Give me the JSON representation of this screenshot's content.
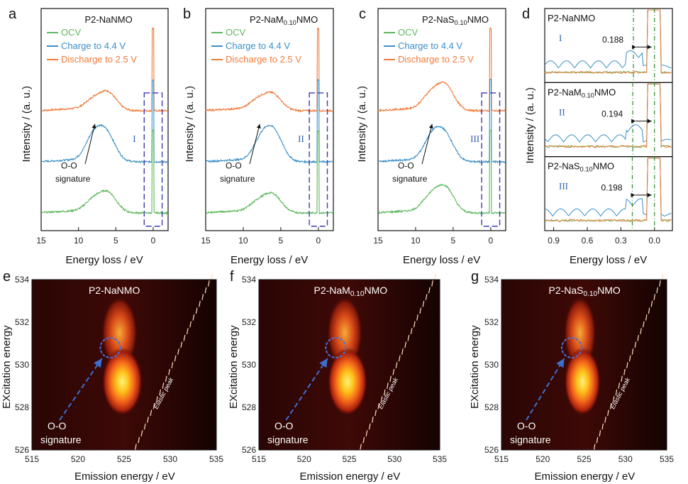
{
  "chart_data": [
    {
      "id": "a",
      "type": "line",
      "panel_label": "a",
      "title": "P2-NaNMO",
      "xlabel": "Energy loss / eV",
      "ylabel": "Intensity / (a. u.)",
      "xlim": [
        15,
        -2
      ],
      "xticks": [
        "15",
        "10",
        "5",
        "0"
      ],
      "series": [
        {
          "name": "OCV",
          "color": "#5cb85c",
          "peaks": [
            [
              8,
              0.35
            ],
            [
              6,
              0.55
            ]
          ]
        },
        {
          "name": "Charge to 4.4 V",
          "color": "#3a8fc6",
          "peaks": [
            [
              7.9,
              0.75
            ],
            [
              6.1,
              0.7
            ]
          ]
        },
        {
          "name": "Discharge to 2.5 V",
          "color": "#f07a3a",
          "peaks": [
            [
              8,
              0.3
            ],
            [
              6,
              0.5
            ]
          ]
        }
      ],
      "annotations": {
        "roman": "I",
        "arrow_text_1": "O-O",
        "arrow_text_2": "signature"
      }
    },
    {
      "id": "b",
      "type": "line",
      "panel_label": "b",
      "title": "P2-NaM0.10NMO",
      "xlabel": "Energy loss / eV",
      "ylabel": "Intensity / (a. u.)",
      "xlim": [
        15,
        -2
      ],
      "xticks": [
        "15",
        "10",
        "5",
        "0"
      ],
      "series": [
        {
          "name": "OCV",
          "color": "#5cb85c",
          "peaks": [
            [
              8,
              0.3
            ],
            [
              6,
              0.5
            ]
          ]
        },
        {
          "name": "Charge to 4.4 V",
          "color": "#3a8fc6",
          "peaks": [
            [
              7.5,
              0.65
            ],
            [
              5.8,
              0.75
            ]
          ]
        },
        {
          "name": "Discharge to 2.5 V",
          "color": "#f07a3a",
          "peaks": [
            [
              8,
              0.3
            ],
            [
              6,
              0.45
            ]
          ]
        }
      ],
      "annotations": {
        "roman": "II",
        "arrow_text_1": "O-O",
        "arrow_text_2": "signature"
      }
    },
    {
      "id": "c",
      "type": "line",
      "panel_label": "c",
      "title": "P2-NaS0.10NMO",
      "xlabel": "Energy loss / eV",
      "ylabel": "Intensity / (a. u.)",
      "xlim": [
        15,
        -2
      ],
      "xticks": [
        "15",
        "10",
        "5",
        "0"
      ],
      "series": [
        {
          "name": "OCV",
          "color": "#5cb85c",
          "peaks": [
            [
              8,
              0.45
            ],
            [
              6,
              0.7
            ]
          ]
        },
        {
          "name": "Charge to 4.4 V",
          "color": "#3a8fc6",
          "peaks": [
            [
              7.8,
              0.7
            ],
            [
              6,
              0.7
            ]
          ]
        },
        {
          "name": "Discharge to 2.5 V",
          "color": "#f07a3a",
          "peaks": [
            [
              8,
              0.45
            ],
            [
              6,
              0.7
            ]
          ]
        }
      ],
      "annotations": {
        "roman": "III",
        "arrow_text_1": "O-O",
        "arrow_text_2": "signature"
      }
    },
    {
      "id": "d",
      "type": "line",
      "panel_label": "d",
      "xlabel": "Energy loss / eV",
      "ylabel": "Intensity / (a. u.)",
      "xlim": [
        0.98,
        -0.16
      ],
      "xticks": [
        "0.9",
        "0.6",
        "0.3",
        "0.0"
      ],
      "subplots": [
        {
          "title": "P2-NaNMO",
          "roman": "I",
          "value": "0.188"
        },
        {
          "title": "P2-NaM0.10NMO",
          "roman": "II",
          "value": "0.194"
        },
        {
          "title": "P2-NaS0.10NMO",
          "roman": "III",
          "value": "0.198"
        }
      ]
    },
    {
      "id": "e",
      "type": "heatmap",
      "panel_label": "e",
      "title": "P2-NaNMO",
      "xlabel": "Emission energy / eV",
      "ylabel": "EXcitation energy",
      "xlim": [
        515,
        535
      ],
      "ylim": [
        526,
        534
      ],
      "xticks": [
        "515",
        "520",
        "525",
        "530",
        "535"
      ],
      "yticks": [
        "526",
        "528",
        "530",
        "532",
        "534"
      ],
      "annotations": {
        "label_1": "O-O",
        "label_2": "signature",
        "elastic": "Elastic peak"
      }
    },
    {
      "id": "f",
      "type": "heatmap",
      "panel_label": "f",
      "title": "P2-NaM0.10NMO",
      "xlabel": "Emission energy / eV",
      "ylabel": "EXcitation energy",
      "xlim": [
        515,
        535
      ],
      "ylim": [
        526,
        534
      ],
      "xticks": [
        "515",
        "520",
        "525",
        "530",
        "535"
      ],
      "yticks": [
        "526",
        "528",
        "530",
        "532",
        "534"
      ],
      "annotations": {
        "label_1": "O-O",
        "label_2": "signature",
        "elastic": "Elastic peak"
      }
    },
    {
      "id": "g",
      "type": "heatmap",
      "panel_label": "g",
      "title": "P2-NaS0.10NMO",
      "xlabel": "Emission energy / eV",
      "ylabel": "EXcitation energy",
      "xlim": [
        515,
        535
      ],
      "ylim": [
        526,
        534
      ],
      "xticks": [
        "515",
        "520",
        "525",
        "530",
        "535"
      ],
      "yticks": [
        "526",
        "528",
        "530",
        "532",
        "534"
      ],
      "annotations": {
        "label_1": "O-O",
        "label_2": "signature",
        "elastic": "Elastic peak"
      }
    }
  ],
  "colors": {
    "ocv": "#5cb85c",
    "charge": "#3a8fc6",
    "discharge": "#f07a3a",
    "box": "#3b3bb0",
    "arrow": "#3a6fd0"
  }
}
